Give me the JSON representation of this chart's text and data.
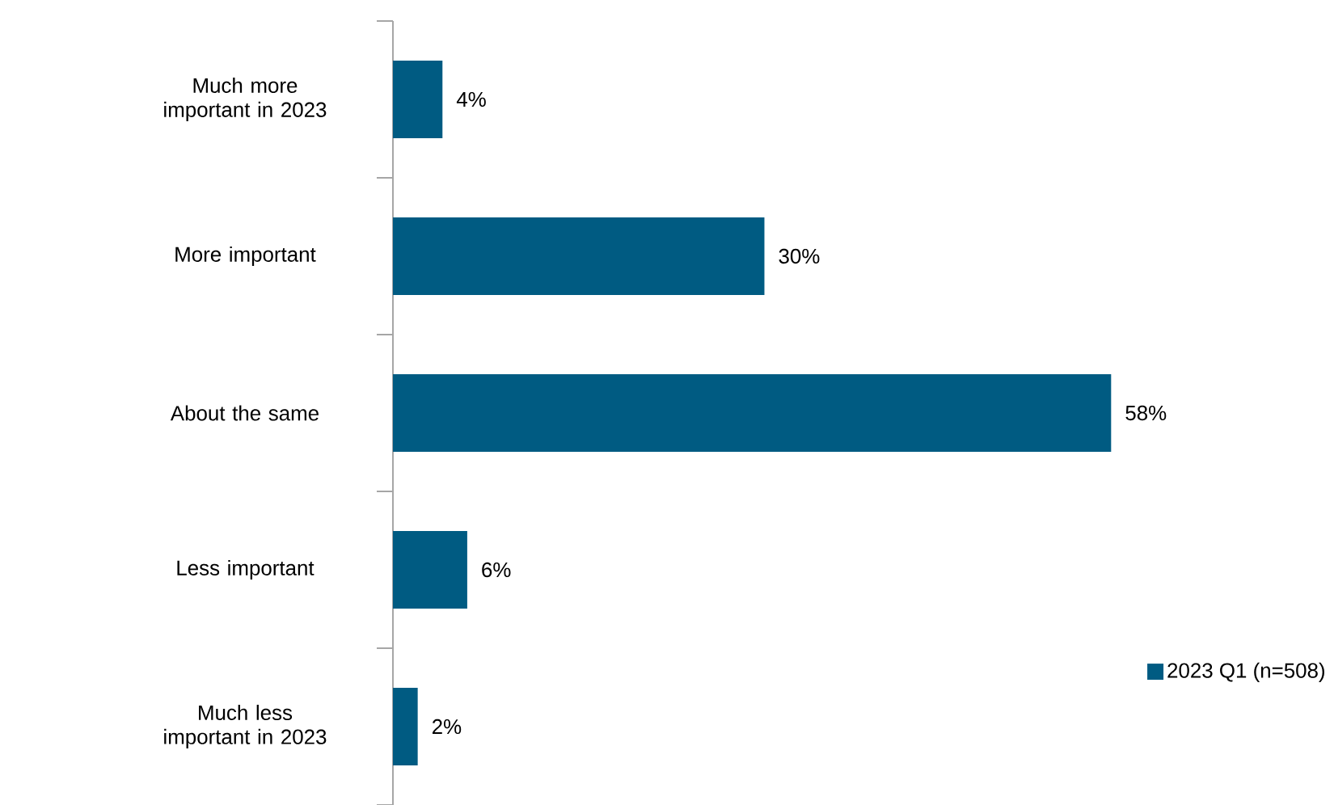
{
  "chart_data": {
    "type": "bar",
    "orientation": "horizontal",
    "categories": [
      "Much more important in 2023",
      "More important",
      "About the same",
      "Less important",
      "Much less important in 2023"
    ],
    "series": [
      {
        "name": "2023 Q1 (n=508)",
        "color": "#005b82",
        "values": [
          4,
          30,
          58,
          6,
          2
        ],
        "value_labels": [
          "4%",
          "30%",
          "58%",
          "6%",
          "2%"
        ]
      }
    ],
    "legend": "right"
  }
}
